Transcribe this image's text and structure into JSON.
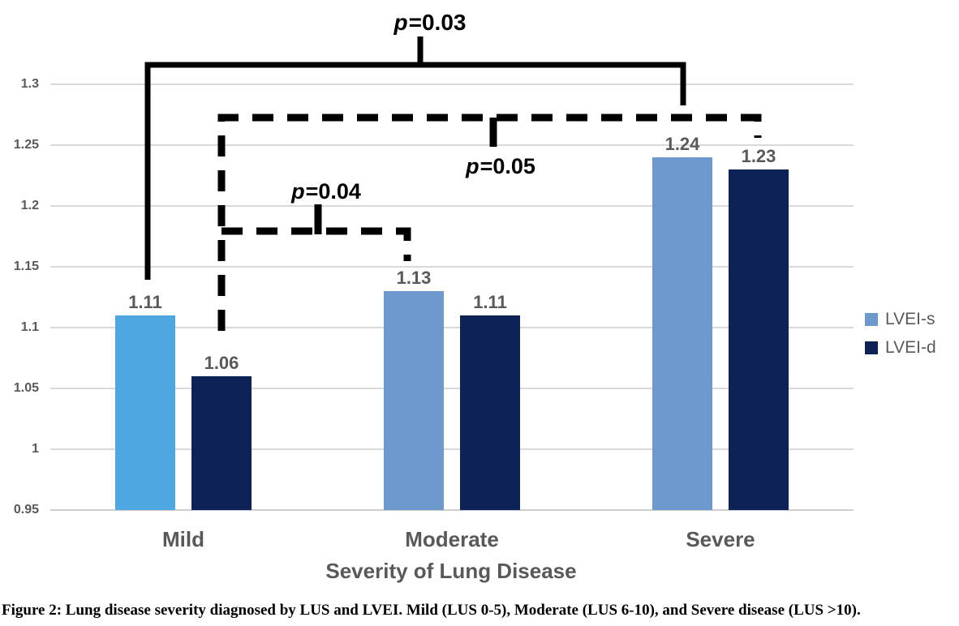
{
  "chart_data": {
    "type": "bar",
    "title": "",
    "xlabel": "Severity of Lung Disease",
    "ylabel": "",
    "categories": [
      "Mild",
      "Moderate",
      "Severe"
    ],
    "series": [
      {
        "name": "LVEI-s",
        "values": [
          1.11,
          1.13,
          1.24
        ],
        "labels": [
          "1.11",
          "1.13",
          "1.24"
        ],
        "colors": [
          "#4FA7E2",
          "#6D99CE",
          "#6D99CE"
        ],
        "legend_color": "#6D99CE"
      },
      {
        "name": "LVEI-d",
        "values": [
          1.06,
          1.11,
          1.23
        ],
        "labels": [
          "1.06",
          "1.11",
          "1.23"
        ],
        "colors": [
          "#0D2257",
          "#0D2257",
          "#0D2257"
        ],
        "legend_color": "#0D2257"
      }
    ],
    "y_axis": {
      "ticks": [
        1.3,
        1.25,
        1.2,
        1.15,
        1.1,
        1.05,
        1.0,
        0.95
      ],
      "tick_labels": [
        "1.3",
        "1.25",
        "1.2",
        "1.15",
        "1.1",
        "1.05",
        "1",
        "0.95"
      ]
    },
    "ylim": [
      0.95,
      1.3
    ],
    "grid": true,
    "legend_position": "right",
    "annotations": [
      {
        "id": "p-003",
        "var": "p",
        "value": "=0.03",
        "style": "solid",
        "compares": [
          "Mild LVEI-s",
          "Severe LVEI-s"
        ]
      },
      {
        "id": "p-005",
        "var": "p",
        "value": "=0.05",
        "style": "dashed",
        "compares": [
          "Mild LVEI-d",
          "Severe LVEI-d"
        ]
      },
      {
        "id": "p-004",
        "var": "p",
        "value": "=0.04",
        "style": "dashed",
        "compares": [
          "Mild LVEI-d",
          "Moderate LVEI-s"
        ]
      }
    ]
  },
  "caption": "Figure 2: Lung disease severity diagnosed by LUS and LVEI. Mild (LUS 0-5), Moderate (LUS 6-10), and Severe disease (LUS >10).",
  "colors": {
    "bar_lvei_s_highlight": "#4FA7E2",
    "bar_lvei_s": "#6D99CE",
    "bar_lvei_d": "#0D2257",
    "axis_text": "#595959",
    "gridline": "#D9D9D9",
    "annotation": "#000000"
  }
}
